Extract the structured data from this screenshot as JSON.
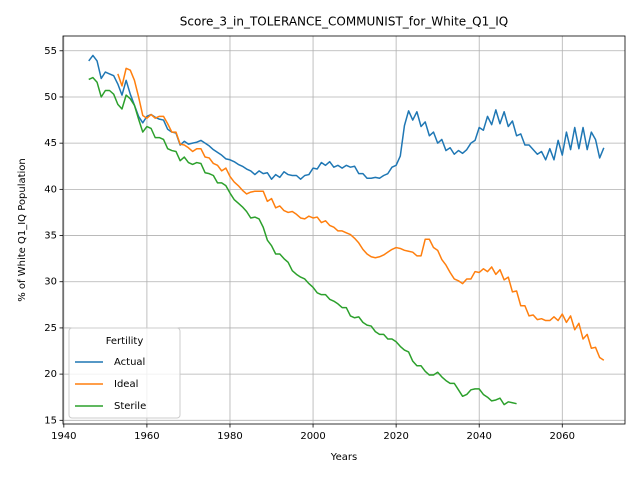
{
  "chart_data": {
    "type": "line",
    "title": "Score_3_in_TOLERANCE_COMMUNIST_for_White_Q1_IQ",
    "x_label": "Years",
    "y_label": "% of White Q1_IQ Population",
    "legend_title": "Fertility",
    "legend_position": "lower left",
    "grid": true,
    "xlim": [
      1939.8,
      2075.1
    ],
    "ylim": [
      14.6,
      56.6
    ],
    "xticks": [
      1940,
      1960,
      1980,
      2000,
      2020,
      2040,
      2060
    ],
    "yticks": [
      15,
      20,
      25,
      30,
      35,
      40,
      45,
      50,
      55
    ],
    "x": [
      1946,
      1947,
      1948,
      1949,
      1950,
      1951,
      1952,
      1953,
      1954,
      1955,
      1956,
      1957,
      1958,
      1959,
      1960,
      1961,
      1962,
      1963,
      1964,
      1965,
      1966,
      1967,
      1968,
      1969,
      1970,
      1971,
      1972,
      1973,
      1974,
      1975,
      1976,
      1977,
      1978,
      1979,
      1980,
      1981,
      1982,
      1983,
      1984,
      1985,
      1986,
      1987,
      1988,
      1989,
      1990,
      1991,
      1992,
      1993,
      1994,
      1995,
      1996,
      1997,
      1998,
      1999,
      2000,
      2001,
      2002,
      2003,
      2004,
      2005,
      2006,
      2007,
      2008,
      2009,
      2010,
      2011,
      2012,
      2013,
      2014,
      2015,
      2016,
      2017,
      2018,
      2019,
      2020,
      2021,
      2022,
      2023,
      2024,
      2025,
      2026,
      2027,
      2028,
      2029,
      2030,
      2031,
      2032,
      2033,
      2034,
      2035,
      2036,
      2037,
      2038,
      2039,
      2040,
      2041,
      2042,
      2043,
      2044,
      2045,
      2046,
      2047,
      2048,
      2049,
      2050,
      2051,
      2052,
      2053,
      2054,
      2055,
      2056,
      2057,
      2058,
      2059,
      2060,
      2061,
      2062,
      2063,
      2064,
      2065,
      2066,
      2067,
      2068,
      2069,
      2070
    ],
    "series": [
      {
        "name": "Actual",
        "color": "#1f77b4",
        "values": [
          53.9,
          54.5,
          53.9,
          52.0,
          52.7,
          52.5,
          52.3,
          51.4,
          50.2,
          51.8,
          50.3,
          49.1,
          47.9,
          47.2,
          47.9,
          48.1,
          47.8,
          47.6,
          47.5,
          46.5,
          46.2,
          46.1,
          44.8,
          45.2,
          44.9,
          45.0,
          45.1,
          45.3,
          45.0,
          44.7,
          44.3,
          44.0,
          43.7,
          43.3,
          43.2,
          43.0,
          42.7,
          42.5,
          42.2,
          42.0,
          41.6,
          42.0,
          41.7,
          41.8,
          41.1,
          41.6,
          41.3,
          41.9,
          41.6,
          41.5,
          41.5,
          41.1,
          41.5,
          41.6,
          42.3,
          42.2,
          42.9,
          42.6,
          43.0,
          42.4,
          42.6,
          42.3,
          42.6,
          42.4,
          42.5,
          41.7,
          41.7,
          41.2,
          41.2,
          41.3,
          41.2,
          41.5,
          41.7,
          42.4,
          42.6,
          43.6,
          46.9,
          48.5,
          47.5,
          48.4,
          46.8,
          47.3,
          45.8,
          46.2,
          45.0,
          45.4,
          44.2,
          44.5,
          43.8,
          44.2,
          43.9,
          44.3,
          45.0,
          45.3,
          46.7,
          46.4,
          47.9,
          47.0,
          48.6,
          47.1,
          48.4,
          46.8,
          47.4,
          45.8,
          46.0,
          44.8,
          44.8,
          44.3,
          43.8,
          44.1,
          43.2,
          44.4,
          43.2,
          45.3,
          43.7,
          46.2,
          44.3,
          46.7,
          44.4,
          46.7,
          44.3,
          46.2,
          45.4,
          43.4,
          44.5
        ]
      },
      {
        "name": "Ideal",
        "color": "#ff7f0e",
        "values": [
          null,
          null,
          null,
          null,
          null,
          null,
          null,
          52.5,
          51.2,
          53.1,
          52.9,
          51.8,
          50.0,
          48.0,
          47.7,
          48.1,
          47.7,
          47.9,
          47.9,
          47.1,
          46.2,
          46.2,
          44.9,
          44.8,
          44.5,
          44.1,
          44.4,
          44.4,
          43.5,
          43.4,
          42.8,
          42.6,
          42.0,
          42.3,
          41.4,
          40.8,
          40.4,
          39.9,
          39.5,
          39.7,
          39.8,
          39.8,
          39.8,
          38.7,
          39.0,
          38.0,
          38.2,
          37.7,
          37.5,
          37.6,
          37.3,
          36.9,
          36.8,
          37.1,
          36.9,
          37.0,
          36.4,
          36.6,
          36.1,
          35.9,
          35.5,
          35.5,
          35.3,
          35.1,
          34.7,
          34.2,
          33.5,
          33.0,
          32.7,
          32.6,
          32.7,
          32.9,
          33.2,
          33.5,
          33.7,
          33.6,
          33.4,
          33.3,
          33.2,
          32.8,
          32.8,
          34.6,
          34.6,
          33.7,
          33.4,
          32.4,
          31.8,
          31.0,
          30.3,
          30.1,
          29.8,
          30.3,
          30.3,
          31.1,
          31.0,
          31.4,
          31.1,
          31.6,
          30.8,
          31.3,
          30.2,
          30.5,
          28.9,
          29.0,
          27.4,
          27.4,
          26.3,
          26.4,
          25.9,
          26.0,
          25.8,
          25.8,
          26.2,
          25.8,
          26.5,
          25.6,
          26.3,
          24.8,
          25.5,
          23.8,
          24.3,
          22.8,
          22.9,
          21.8,
          21.5
        ]
      },
      {
        "name": "Sterile",
        "color": "#2ca02c",
        "values": [
          51.9,
          52.1,
          51.6,
          50.0,
          50.7,
          50.7,
          50.3,
          49.2,
          48.7,
          50.2,
          49.8,
          49.1,
          47.6,
          46.2,
          46.8,
          46.6,
          45.6,
          45.6,
          45.4,
          44.4,
          44.2,
          44.1,
          43.1,
          43.5,
          42.9,
          42.7,
          42.9,
          42.8,
          41.8,
          41.7,
          41.5,
          40.7,
          40.7,
          40.4,
          39.6,
          38.9,
          38.5,
          38.1,
          37.6,
          36.9,
          37.0,
          36.8,
          35.9,
          34.5,
          33.9,
          33.0,
          33.0,
          32.5,
          32.1,
          31.2,
          30.8,
          30.5,
          30.3,
          29.8,
          29.4,
          28.8,
          28.6,
          28.6,
          28.1,
          27.9,
          27.6,
          27.2,
          27.2,
          26.3,
          26.1,
          26.2,
          25.6,
          25.3,
          25.2,
          24.6,
          24.3,
          24.3,
          23.8,
          23.8,
          23.5,
          23.0,
          22.6,
          22.4,
          21.4,
          20.9,
          20.9,
          20.3,
          19.9,
          19.9,
          20.2,
          19.7,
          19.3,
          19.0,
          19.0,
          18.3,
          17.6,
          17.8,
          18.3,
          18.4,
          18.4,
          17.8,
          17.5,
          17.1,
          17.2,
          17.4,
          16.7,
          17.0,
          16.9,
          16.8,
          null,
          null,
          null,
          null,
          null,
          null,
          null,
          null,
          null,
          null,
          null,
          null,
          null,
          null,
          null,
          null,
          null,
          null,
          null,
          null,
          null
        ]
      }
    ]
  }
}
